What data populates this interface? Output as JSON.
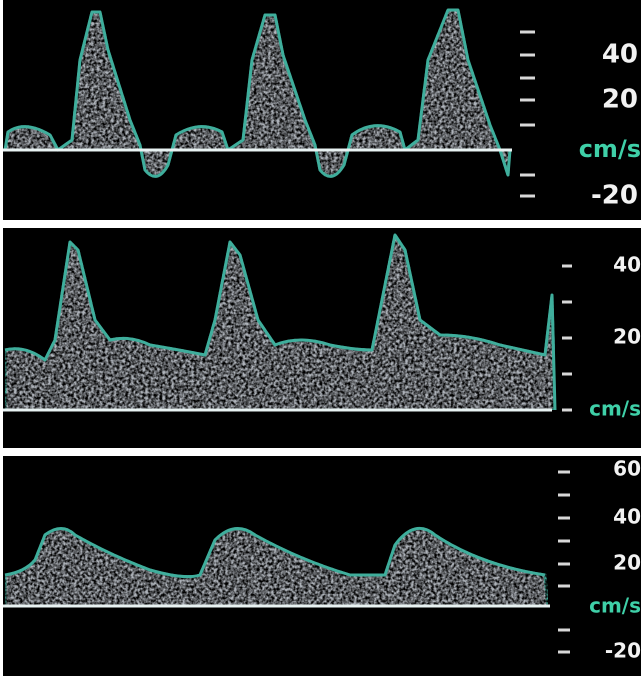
{
  "panels": [
    {
      "labels": [
        "40",
        "20",
        "cm/s",
        "-20"
      ]
    },
    {
      "labels": [
        "40",
        "20",
        "cm/s"
      ]
    },
    {
      "labels": [
        "60",
        "40",
        "20",
        "cm/s",
        "-20"
      ]
    }
  ]
}
